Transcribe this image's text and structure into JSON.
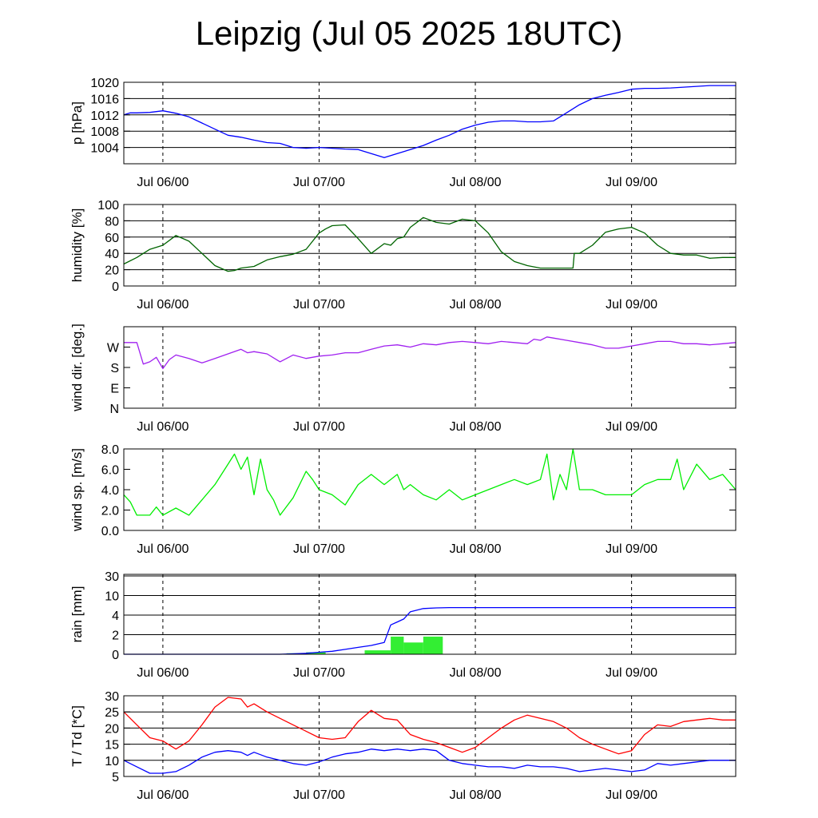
{
  "title": "Leipzig (Jul 05 2025 18UTC)",
  "x_ticks": [
    "Jul 06/00",
    "Jul 07/00",
    "Jul 08/00",
    "Jul 09/00"
  ],
  "chart_data": [
    {
      "type": "line",
      "ylabel": "p [hPa]",
      "ylim": [
        1000,
        1020
      ],
      "yticks": [
        {
          "v": 1004,
          "label": "1004"
        },
        {
          "v": 1008,
          "label": "1008"
        },
        {
          "v": 1012,
          "label": "1012"
        },
        {
          "v": 1016,
          "label": "1016"
        },
        {
          "v": 1020,
          "label": "1020"
        }
      ],
      "grid": "horizontal",
      "series": [
        {
          "color": "#0000ff",
          "x": [
            0,
            1,
            2,
            4,
            6,
            7,
            8,
            10,
            12,
            14,
            16,
            18,
            20,
            22,
            24,
            26,
            28,
            30,
            32,
            34,
            36,
            38,
            40,
            42,
            44,
            46,
            48,
            50,
            52,
            54,
            56,
            58,
            60,
            62,
            64,
            66,
            68,
            70,
            72,
            74,
            76,
            78,
            80,
            82,
            84,
            86,
            88,
            90,
            92,
            94
          ],
          "y": [
            1012,
            1012.5,
            1012.5,
            1012.6,
            1013,
            1012.7,
            1012.4,
            1011.5,
            1010,
            1008.5,
            1007,
            1006.5,
            1005.8,
            1005.2,
            1005,
            1004,
            1003.8,
            1004,
            1003.8,
            1003.6,
            1003.5,
            1002.5,
            1001.5,
            1002.5,
            1003.5,
            1004.5,
            1005.8,
            1007,
            1008.5,
            1009.5,
            1010.2,
            1010.5,
            1010.5,
            1010.3,
            1010.3,
            1010.5,
            1012.5,
            1014.5,
            1016,
            1016.8,
            1017.5,
            1018.3,
            1018.5,
            1018.5,
            1018.6,
            1018.8,
            1019,
            1019.2,
            1019.2,
            1019.2
          ]
        }
      ]
    },
    {
      "type": "line",
      "ylabel": "humidity [%]",
      "ylim": [
        0,
        100
      ],
      "yticks": [
        {
          "v": 0,
          "label": "0"
        },
        {
          "v": 20,
          "label": "20"
        },
        {
          "v": 40,
          "label": "40"
        },
        {
          "v": 60,
          "label": "60"
        },
        {
          "v": 80,
          "label": "80"
        },
        {
          "v": 100,
          "label": "100"
        }
      ],
      "grid": "horizontal",
      "series": [
        {
          "color": "#006400",
          "x": [
            0,
            2,
            4,
            6,
            8,
            10,
            12,
            14,
            16,
            17,
            18,
            20,
            22,
            24,
            26,
            28,
            30,
            31,
            32,
            34,
            36,
            38,
            40,
            41,
            42,
            43,
            44,
            46,
            48,
            50,
            52,
            54,
            56,
            58,
            60,
            62,
            64,
            66,
            68,
            69,
            69.2,
            70,
            72,
            74,
            76,
            78,
            80,
            82,
            84,
            86,
            88,
            90,
            92,
            94
          ],
          "y": [
            27,
            35,
            45,
            50,
            62,
            55,
            40,
            25,
            18,
            19,
            22,
            24,
            32,
            36,
            39,
            45,
            65,
            70,
            74,
            75,
            58,
            40,
            52,
            50,
            58,
            60,
            72,
            84,
            78,
            76,
            82,
            80,
            65,
            42,
            30,
            25,
            22,
            22,
            22,
            22,
            40,
            40,
            50,
            66,
            70,
            72,
            65,
            50,
            40,
            38,
            38,
            34,
            35,
            35
          ]
        }
      ]
    },
    {
      "type": "line",
      "ylabel": "wind dir. [deg.]",
      "ylim": [
        0,
        360
      ],
      "yticks": [
        {
          "v": 0,
          "label": "N"
        },
        {
          "v": 90,
          "label": "E"
        },
        {
          "v": 180,
          "label": "S"
        },
        {
          "v": 270,
          "label": "W"
        }
      ],
      "grid": "none",
      "series": [
        {
          "color": "#a020f0",
          "x": [
            0,
            2,
            3,
            4,
            5,
            6,
            7,
            8,
            10,
            12,
            14,
            16,
            18,
            19,
            20,
            22,
            24,
            26,
            28,
            30,
            32,
            34,
            36,
            38,
            40,
            42,
            44,
            46,
            48,
            50,
            52,
            54,
            56,
            58,
            60,
            62,
            63,
            64,
            65,
            66,
            68,
            70,
            72,
            74,
            76,
            78,
            80,
            82,
            84,
            86,
            88,
            90,
            92,
            94
          ],
          "y": [
            290,
            290,
            195,
            205,
            225,
            175,
            215,
            235,
            220,
            200,
            220,
            240,
            260,
            245,
            250,
            240,
            205,
            235,
            220,
            230,
            235,
            245,
            245,
            260,
            275,
            280,
            270,
            285,
            280,
            290,
            295,
            290,
            285,
            295,
            290,
            285,
            305,
            300,
            315,
            310,
            300,
            290,
            280,
            265,
            265,
            275,
            285,
            295,
            295,
            285,
            285,
            280,
            285,
            290
          ]
        }
      ]
    },
    {
      "type": "line",
      "ylabel": "wind sp. [m/s]",
      "ylim": [
        0,
        8
      ],
      "yticks": [
        {
          "v": 0,
          "label": "0.0"
        },
        {
          "v": 2,
          "label": "2.0"
        },
        {
          "v": 4,
          "label": "4.0"
        },
        {
          "v": 6,
          "label": "6.0"
        },
        {
          "v": 8,
          "label": "8.0"
        }
      ],
      "grid": "none",
      "series": [
        {
          "color": "#00ee00",
          "x": [
            0,
            1,
            2,
            4,
            5,
            6,
            8,
            10,
            12,
            14,
            16,
            17,
            18,
            19,
            20,
            21,
            22,
            23,
            24,
            26,
            28,
            29,
            30,
            32,
            34,
            35,
            36,
            38,
            40,
            42,
            43,
            44,
            46,
            48,
            50,
            52,
            54,
            56,
            58,
            60,
            62,
            64,
            65,
            66,
            67,
            68,
            69,
            70,
            72,
            74,
            76,
            78,
            80,
            82,
            84,
            85,
            86,
            88,
            90,
            92,
            94
          ],
          "y": [
            3.5,
            2.8,
            1.5,
            1.5,
            2.3,
            1.5,
            2.2,
            1.5,
            3.0,
            4.5,
            6.5,
            7.5,
            6.0,
            7.2,
            3.5,
            7.0,
            4.0,
            3.0,
            1.5,
            3.2,
            5.8,
            5.0,
            4.0,
            3.5,
            2.5,
            3.5,
            4.5,
            5.5,
            4.5,
            5.5,
            4.0,
            4.5,
            3.5,
            3.0,
            4.0,
            3.0,
            3.5,
            4.0,
            4.5,
            5.0,
            4.5,
            5.0,
            7.5,
            3.0,
            5.5,
            4.0,
            8.0,
            4.0,
            4.0,
            3.5,
            3.5,
            3.5,
            4.5,
            5.0,
            5.0,
            7.0,
            4.0,
            6.5,
            5.0,
            5.5,
            4.0
          ]
        }
      ]
    },
    {
      "type": "bar+line",
      "ylabel": "rain [mm]",
      "ylim": [
        0,
        30
      ],
      "yticks": [
        {
          "v": 0,
          "label": "0"
        },
        {
          "v": 2,
          "label": "2"
        },
        {
          "v": 4,
          "label": "4"
        },
        {
          "v": 10,
          "label": "10"
        },
        {
          "v": 30,
          "label": "30"
        }
      ],
      "grid": "horizontal",
      "bars": {
        "color": "#33ee33",
        "x_start": [
          25,
          28,
          37,
          41,
          43,
          46
        ],
        "x_end": [
          28,
          31,
          41,
          43,
          46,
          49
        ],
        "values": [
          0.1,
          0.2,
          0.4,
          1.8,
          1.2,
          1.8
        ]
      },
      "series": [
        {
          "color": "#0000ff",
          "x": [
            0,
            24,
            28,
            30,
            32,
            34,
            36,
            38,
            40,
            41,
            42,
            43,
            44,
            46,
            48,
            50,
            52,
            60,
            70,
            80,
            90,
            94
          ],
          "y": [
            0,
            0,
            0.1,
            0.2,
            0.3,
            0.5,
            0.7,
            0.9,
            1.2,
            3.0,
            3.3,
            3.6,
            5.0,
            6.0,
            6.2,
            6.3,
            6.3,
            6.3,
            6.3,
            6.3,
            6.3,
            6.3
          ]
        }
      ]
    },
    {
      "type": "line",
      "ylabel": "T / Td [*C]",
      "ylim": [
        5,
        30
      ],
      "yticks": [
        {
          "v": 5,
          "label": "5"
        },
        {
          "v": 10,
          "label": "10"
        },
        {
          "v": 15,
          "label": "15"
        },
        {
          "v": 20,
          "label": "20"
        },
        {
          "v": 25,
          "label": "25"
        },
        {
          "v": 30,
          "label": "30"
        }
      ],
      "grid": "horizontal",
      "series": [
        {
          "color": "#ff0000",
          "x": [
            0,
            2,
            4,
            6,
            8,
            10,
            12,
            14,
            16,
            18,
            19,
            20,
            22,
            24,
            26,
            28,
            30,
            32,
            34,
            36,
            38,
            40,
            42,
            44,
            46,
            48,
            50,
            52,
            54,
            56,
            58,
            60,
            62,
            64,
            66,
            68,
            70,
            72,
            74,
            76,
            78,
            80,
            82,
            84,
            86,
            88,
            90,
            92,
            94
          ],
          "y": [
            25,
            21,
            17,
            16,
            13.5,
            16,
            21,
            26.5,
            29.5,
            29,
            26.5,
            27.5,
            25,
            23,
            21,
            19,
            17,
            16.5,
            17,
            22,
            25.5,
            23,
            22.5,
            18,
            16.5,
            15.5,
            14,
            12.5,
            14,
            17,
            20,
            22.5,
            24,
            23,
            22,
            20,
            17,
            15,
            13.5,
            12,
            13,
            18,
            21,
            20.5,
            22,
            22.5,
            23,
            22.5,
            22.5
          ]
        },
        {
          "color": "#0000ff",
          "x": [
            0,
            2,
            4,
            6,
            8,
            10,
            12,
            14,
            16,
            18,
            19,
            20,
            22,
            24,
            26,
            28,
            30,
            32,
            34,
            36,
            38,
            40,
            42,
            44,
            46,
            48,
            50,
            52,
            54,
            56,
            58,
            60,
            62,
            64,
            66,
            68,
            70,
            72,
            74,
            76,
            78,
            80,
            82,
            84,
            86,
            88,
            90,
            92,
            94
          ],
          "y": [
            10,
            8,
            6,
            6,
            6.5,
            8.5,
            11,
            12.5,
            13,
            12.5,
            11.5,
            12.5,
            11,
            10,
            9,
            8.5,
            9.5,
            11,
            12,
            12.5,
            13.5,
            13,
            13.5,
            13,
            13.5,
            13,
            10,
            9,
            8.5,
            8,
            8,
            7.5,
            8.5,
            8,
            8,
            7.5,
            6.5,
            7,
            7.5,
            7,
            6.5,
            7,
            9,
            8.5,
            9,
            9.5,
            10,
            10,
            10
          ]
        }
      ]
    }
  ]
}
